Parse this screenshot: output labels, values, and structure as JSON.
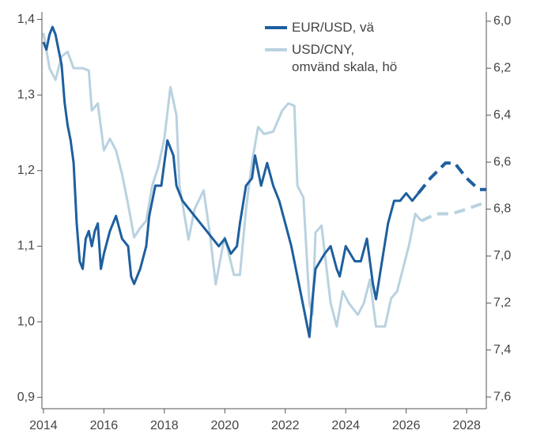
{
  "chart_data": {
    "type": "line",
    "xlim": [
      2013.95,
      2028.65
    ],
    "xticks": [
      2014,
      2016,
      2018,
      2020,
      2022,
      2024,
      2026,
      2028
    ],
    "ylim": [
      0.885,
      1.41
    ],
    "yticks": [
      {
        "value": 0.9,
        "label": "0,9"
      },
      {
        "value": 1.0,
        "label": "1,0"
      },
      {
        "value": 1.1,
        "label": "1,1"
      },
      {
        "value": 1.2,
        "label": "1,2"
      },
      {
        "value": 1.3,
        "label": "1,3"
      },
      {
        "value": 1.4,
        "label": "1,4"
      }
    ],
    "y2lim": [
      7.65,
      5.96
    ],
    "y2ticks": [
      {
        "value": 6.0,
        "label": "6,0"
      },
      {
        "value": 6.2,
        "label": "6,2"
      },
      {
        "value": 6.4,
        "label": "6,4"
      },
      {
        "value": 6.6,
        "label": "6,6"
      },
      {
        "value": 6.8,
        "label": "6,8"
      },
      {
        "value": 7.0,
        "label": "7,0"
      },
      {
        "value": 7.2,
        "label": "7,2"
      },
      {
        "value": 7.4,
        "label": "7,4"
      },
      {
        "value": 7.6,
        "label": "7,6"
      }
    ],
    "series": [
      {
        "name": "USD/CNY,\nomvänd skala, hö",
        "color": "#b9d2e0",
        "axis": "y2",
        "x": [
          2014.0,
          2014.2,
          2014.4,
          2014.6,
          2014.8,
          2015.0,
          2015.3,
          2015.5,
          2015.6,
          2015.8,
          2016.0,
          2016.2,
          2016.4,
          2016.6,
          2016.8,
          2017.0,
          2017.2,
          2017.4,
          2017.6,
          2017.8,
          2018.0,
          2018.2,
          2018.4,
          2018.5,
          2018.8,
          2019.0,
          2019.3,
          2019.5,
          2019.7,
          2019.9,
          2020.0,
          2020.3,
          2020.5,
          2020.7,
          2020.9,
          2021.1,
          2021.3,
          2021.6,
          2021.9,
          2022.1,
          2022.3,
          2022.4,
          2022.6,
          2022.8,
          2022.9,
          2023.0,
          2023.2,
          2023.5,
          2023.7,
          2023.9,
          2024.1,
          2024.4,
          2024.6,
          2024.8,
          2025.0,
          2025.3,
          2025.5,
          2025.7,
          2025.9,
          2026.1,
          2026.3,
          2026.5
        ],
        "values": [
          6.05,
          6.2,
          6.25,
          6.15,
          6.13,
          6.2,
          6.2,
          6.21,
          6.38,
          6.35,
          6.55,
          6.5,
          6.55,
          6.65,
          6.78,
          6.92,
          6.88,
          6.85,
          6.7,
          6.62,
          6.5,
          6.28,
          6.4,
          6.7,
          6.93,
          6.8,
          6.72,
          6.9,
          7.12,
          6.98,
          6.92,
          7.08,
          7.08,
          6.8,
          6.6,
          6.45,
          6.48,
          6.47,
          6.38,
          6.35,
          6.36,
          6.7,
          6.75,
          7.2,
          7.25,
          6.9,
          6.87,
          7.2,
          7.3,
          7.15,
          7.2,
          7.25,
          7.2,
          7.1,
          7.3,
          7.3,
          7.18,
          7.15,
          7.05,
          6.95,
          6.82,
          6.85
        ]
      },
      {
        "color": "#b9d2e0",
        "axis": "y2",
        "dashed": true,
        "x": [
          2026.5,
          2027.0,
          2027.5,
          2028.0,
          2028.65
        ],
        "values": [
          6.85,
          6.82,
          6.82,
          6.8,
          6.77
        ]
      },
      {
        "name": "EUR/USD, vä",
        "color": "#1e5f9e",
        "x": [
          2014.0,
          2014.1,
          2014.2,
          2014.3,
          2014.4,
          2014.5,
          2014.6,
          2014.7,
          2014.8,
          2014.9,
          2015.0,
          2015.1,
          2015.2,
          2015.3,
          2015.4,
          2015.5,
          2015.6,
          2015.7,
          2015.8,
          2015.9,
          2016.0,
          2016.2,
          2016.4,
          2016.6,
          2016.8,
          2016.9,
          2017.0,
          2017.2,
          2017.4,
          2017.5,
          2017.7,
          2017.9,
          2018.0,
          2018.1,
          2018.3,
          2018.4,
          2018.6,
          2018.8,
          2019.0,
          2019.2,
          2019.4,
          2019.6,
          2019.8,
          2020.0,
          2020.2,
          2020.4,
          2020.5,
          2020.7,
          2020.9,
          2021.0,
          2021.2,
          2021.4,
          2021.6,
          2021.8,
          2022.0,
          2022.2,
          2022.4,
          2022.6,
          2022.8,
          2022.9,
          2023.0,
          2023.3,
          2023.5,
          2023.7,
          2023.8,
          2024.0,
          2024.3,
          2024.5,
          2024.7,
          2024.9,
          2025.0,
          2025.2,
          2025.4,
          2025.6,
          2025.8,
          2026.0,
          2026.2,
          2026.4
        ],
        "values": [
          1.37,
          1.36,
          1.38,
          1.39,
          1.38,
          1.36,
          1.34,
          1.29,
          1.26,
          1.24,
          1.21,
          1.13,
          1.08,
          1.07,
          1.11,
          1.12,
          1.1,
          1.12,
          1.13,
          1.07,
          1.09,
          1.12,
          1.14,
          1.11,
          1.1,
          1.06,
          1.05,
          1.07,
          1.1,
          1.14,
          1.18,
          1.18,
          1.21,
          1.24,
          1.22,
          1.18,
          1.16,
          1.15,
          1.14,
          1.13,
          1.12,
          1.11,
          1.1,
          1.11,
          1.09,
          1.1,
          1.13,
          1.18,
          1.19,
          1.22,
          1.18,
          1.21,
          1.18,
          1.16,
          1.13,
          1.1,
          1.06,
          1.02,
          0.98,
          1.03,
          1.07,
          1.09,
          1.1,
          1.07,
          1.06,
          1.1,
          1.08,
          1.08,
          1.11,
          1.05,
          1.03,
          1.08,
          1.13,
          1.16,
          1.16,
          1.17,
          1.16,
          1.17
        ]
      },
      {
        "color": "#1e5f9e",
        "dashed": true,
        "x": [
          2026.4,
          2026.8,
          2027.3,
          2027.6,
          2028.0,
          2028.4,
          2028.65
        ],
        "values": [
          1.17,
          1.19,
          1.21,
          1.21,
          1.19,
          1.175,
          1.175
        ]
      }
    ]
  }
}
